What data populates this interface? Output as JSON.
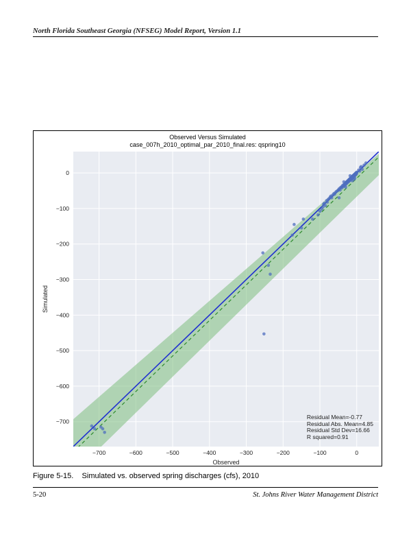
{
  "header": {
    "title": "North Florida Southeast Georgia (NFSEG) Model Report, Version 1.1"
  },
  "footer": {
    "page": "5-20",
    "org": "St. Johns River Water Management District"
  },
  "caption": {
    "label": "Figure 5-15.",
    "text": "Simulated vs. observed spring discharges (cfs), 2010"
  },
  "chart": {
    "type": "scatter",
    "title_line1": "Observed Versus Simulated",
    "title_line2": "case_007h_2010_optimal_par_2010_final.res: qspring10",
    "background_color": "#e9ecf2",
    "grid_color": "#ffffff",
    "xlabel": "Observed",
    "ylabel": "Simulated",
    "xlim": [
      -770,
      60
    ],
    "ylim": [
      -770,
      60
    ],
    "xticks": [
      -700,
      -600,
      -500,
      -400,
      -300,
      -200,
      -100,
      0
    ],
    "yticks": [
      -700,
      -600,
      -500,
      -400,
      -300,
      -200,
      -100,
      0
    ],
    "xtick_labels": [
      "−700",
      "−600",
      "−500",
      "−400",
      "−300",
      "−200",
      "−100",
      "0"
    ],
    "ytick_labels": [
      "−700",
      "",
      "−600",
      "",
      "−500",
      "",
      "−400",
      "",
      "−300",
      "",
      "−200",
      "",
      "−100",
      "",
      "0"
    ],
    "fit_line_color": "#2030d0",
    "diag_line_color": "#2d8a2d",
    "conf_band_color": "#7fbf7f",
    "conf_band_opacity": 0.55,
    "point_color": "#4f6fbf",
    "points": [
      [
        -720,
        -712
      ],
      [
        -712,
        -720
      ],
      [
        -695,
        -715
      ],
      [
        -685,
        -730
      ],
      [
        -690,
        -720
      ],
      [
        -255,
        -225
      ],
      [
        -252,
        -453
      ],
      [
        -240,
        -260
      ],
      [
        -235,
        -285
      ],
      [
        -175,
        -175
      ],
      [
        -170,
        -145
      ],
      [
        -150,
        -155
      ],
      [
        -145,
        -130
      ],
      [
        -120,
        -130
      ],
      [
        -105,
        -118
      ],
      [
        -100,
        -108
      ],
      [
        -95,
        -102
      ],
      [
        -92,
        -96
      ],
      [
        -90,
        -88
      ],
      [
        -88,
        -85
      ],
      [
        -85,
        -92
      ],
      [
        -82,
        -78
      ],
      [
        -80,
        -82
      ],
      [
        -78,
        -75
      ],
      [
        -75,
        -72
      ],
      [
        -72,
        -68
      ],
      [
        -70,
        -65
      ],
      [
        -68,
        -70
      ],
      [
        -65,
        -62
      ],
      [
        -62,
        -58
      ],
      [
        -60,
        -60
      ],
      [
        -58,
        -55
      ],
      [
        -55,
        -52
      ],
      [
        -52,
        -50
      ],
      [
        -50,
        -48
      ],
      [
        -48,
        -45
      ],
      [
        -45,
        -48
      ],
      [
        -45,
        -42
      ],
      [
        -42,
        -40
      ],
      [
        -40,
        -38
      ],
      [
        -40,
        -42
      ],
      [
        -38,
        -35
      ],
      [
        -36,
        -38
      ],
      [
        -35,
        -33
      ],
      [
        -34,
        -36
      ],
      [
        -33,
        -31
      ],
      [
        -32,
        -30
      ],
      [
        -31,
        -33
      ],
      [
        -30,
        -28
      ],
      [
        -30,
        -32
      ],
      [
        -29,
        -27
      ],
      [
        -28,
        -26
      ],
      [
        -28,
        -30
      ],
      [
        -27,
        -25
      ],
      [
        -26,
        -24
      ],
      [
        -26,
        -28
      ],
      [
        -25,
        -23
      ],
      [
        -25,
        -26
      ],
      [
        -24,
        -22
      ],
      [
        -23,
        -25
      ],
      [
        -23,
        -21
      ],
      [
        -22,
        -20
      ],
      [
        -22,
        -24
      ],
      [
        -21,
        -19
      ],
      [
        -20,
        -22
      ],
      [
        -20,
        -18
      ],
      [
        -19,
        -17
      ],
      [
        -19,
        -21
      ],
      [
        -18,
        -16
      ],
      [
        -18,
        -20
      ],
      [
        -17,
        -15
      ],
      [
        -17,
        -19
      ],
      [
        -16,
        -14
      ],
      [
        -16,
        -18
      ],
      [
        -15,
        -13
      ],
      [
        -15,
        -17
      ],
      [
        -14,
        -12
      ],
      [
        -14,
        -16
      ],
      [
        -13,
        -11
      ],
      [
        -13,
        -15
      ],
      [
        -12,
        -10
      ],
      [
        -12,
        -14
      ],
      [
        -11,
        -9
      ],
      [
        -11,
        -13
      ],
      [
        -10,
        -8
      ],
      [
        -10,
        -12
      ],
      [
        -9,
        -7
      ],
      [
        -9,
        -11
      ],
      [
        -8,
        -6
      ],
      [
        -8,
        -10
      ],
      [
        -7,
        -5
      ],
      [
        -7,
        -9
      ],
      [
        -6,
        -4
      ],
      [
        -6,
        -8
      ],
      [
        -5,
        -3
      ],
      [
        -5,
        -7
      ],
      [
        -4,
        -2
      ],
      [
        -4,
        -6
      ],
      [
        -3,
        -1
      ],
      [
        -3,
        -5
      ],
      [
        -2,
        0
      ],
      [
        -2,
        -4
      ],
      [
        -1,
        1
      ],
      [
        -1,
        -3
      ],
      [
        0,
        0
      ],
      [
        0,
        2
      ],
      [
        -5,
        -15
      ],
      [
        -8,
        -18
      ],
      [
        -12,
        -22
      ],
      [
        -18,
        -8
      ],
      [
        15,
        10
      ],
      [
        10,
        15
      ],
      [
        5,
        8
      ],
      [
        8,
        5
      ],
      [
        12,
        18
      ],
      [
        20,
        22
      ],
      [
        25,
        28
      ],
      [
        -30,
        -40
      ],
      [
        -35,
        -25
      ],
      [
        -48,
        -70
      ]
    ],
    "conf_band": {
      "x": [
        -770,
        60
      ],
      "upper": [
        -693,
        54
      ],
      "lower": [
        -847,
        -6
      ]
    },
    "fit_line": {
      "x": [
        -770,
        60
      ],
      "y": [
        -770,
        60
      ]
    },
    "diag_line": {
      "x": [
        -770,
        60
      ],
      "y": [
        -785,
        45
      ]
    },
    "stats": {
      "line1": "Residual Mean=-0.77",
      "line2": "Residual Abs. Mean=4.85",
      "line3": "Residual Std Dev=16.66",
      "line4": "R squared=0.91"
    }
  }
}
